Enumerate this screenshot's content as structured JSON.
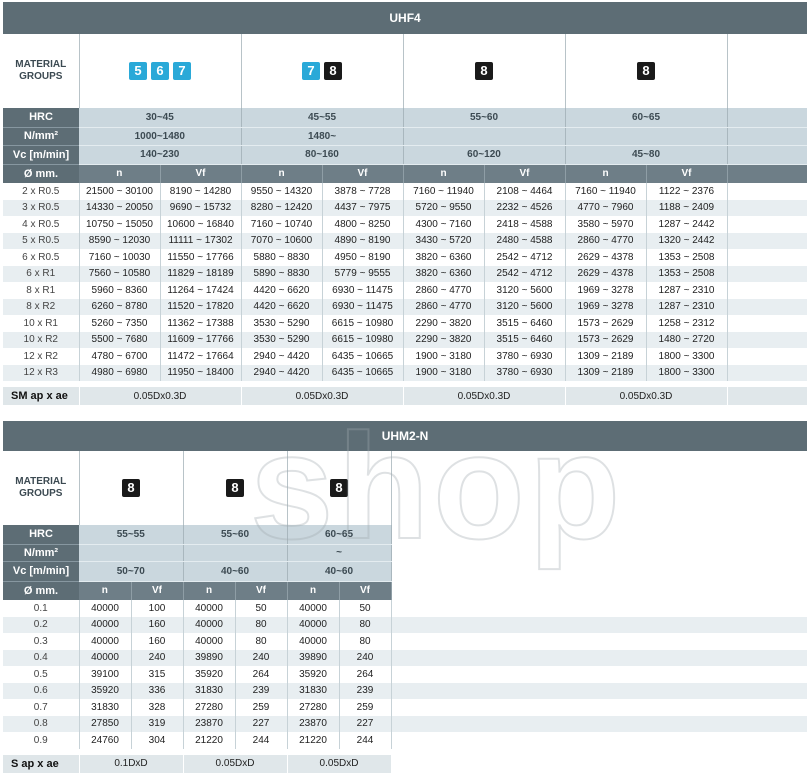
{
  "uhf4": {
    "title": "UHF4",
    "material_label_1": "MATERIAL",
    "material_label_2": "GROUPS",
    "groups": [
      {
        "badges": [
          {
            "n": "5",
            "color": "blue"
          },
          {
            "n": "6",
            "color": "blue"
          },
          {
            "n": "7",
            "color": "blue"
          }
        ]
      },
      {
        "badges": [
          {
            "n": "7",
            "color": "blue"
          },
          {
            "n": "8",
            "color": "black"
          }
        ]
      },
      {
        "badges": [
          {
            "n": "8",
            "color": "black"
          }
        ]
      },
      {
        "badges": [
          {
            "n": "8",
            "color": "black"
          }
        ]
      }
    ],
    "param_labels": {
      "hrc": "HRC",
      "nmm": "N/mm²",
      "vc": "Vc [m/min]",
      "dia": "Ø mm."
    },
    "hrc": [
      "30~45",
      "45~55",
      "55~60",
      "60~65"
    ],
    "nmm": [
      "1000~1480",
      "1480~",
      "",
      ""
    ],
    "vc": [
      "140~230",
      "80~160",
      "60~120",
      "45~80"
    ],
    "col_n": "n",
    "col_vf": "Vf",
    "rows": [
      {
        "d": "2 x R0.5",
        "v": [
          "21500 ~ 30100",
          "8190 ~ 14280",
          "9550 ~ 14320",
          "3878 ~ 7728",
          "7160 ~ 11940",
          "2108 ~ 4464",
          "7160 ~ 11940",
          "1122 ~ 2376"
        ]
      },
      {
        "d": "3 x R0.5",
        "v": [
          "14330 ~ 20050",
          "9690 ~ 15732",
          "8280 ~ 12420",
          "4437 ~ 7975",
          "5720 ~ 9550",
          "2232 ~ 4526",
          "4770 ~ 7960",
          "1188 ~ 2409"
        ]
      },
      {
        "d": "4 x R0.5",
        "v": [
          "10750 ~ 15050",
          "10600 ~ 16840",
          "7160 ~ 10740",
          "4800 ~ 8250",
          "4300 ~ 7160",
          "2418 ~ 4588",
          "3580 ~ 5970",
          "1287 ~ 2442"
        ]
      },
      {
        "d": "5 x R0.5",
        "v": [
          "8590 ~ 12030",
          "11111 ~ 17302",
          "7070 ~ 10600",
          "4890 ~ 8190",
          "3430 ~ 5720",
          "2480 ~ 4588",
          "2860 ~ 4770",
          "1320 ~ 2442"
        ]
      },
      {
        "d": "6 x R0.5",
        "v": [
          "7160 ~ 10030",
          "11550 ~ 17766",
          "5880 ~ 8830",
          "4950 ~ 8190",
          "3820 ~ 6360",
          "2542 ~ 4712",
          "2629 ~ 4378",
          "1353 ~ 2508"
        ]
      },
      {
        "d": "6 x R1",
        "v": [
          "7560 ~ 10580",
          "11829 ~ 18189",
          "5890 ~ 8830",
          "5779 ~ 9555",
          "3820 ~ 6360",
          "2542 ~ 4712",
          "2629 ~ 4378",
          "1353 ~ 2508"
        ]
      },
      {
        "d": "8 x R1",
        "v": [
          "5960 ~ 8360",
          "11264 ~ 17424",
          "4420 ~ 6620",
          "6930 ~ 11475",
          "2860 ~ 4770",
          "3120 ~ 5600",
          "1969 ~ 3278",
          "1287 ~ 2310"
        ]
      },
      {
        "d": "8 x R2",
        "v": [
          "6260 ~ 8780",
          "11520 ~ 17820",
          "4420 ~ 6620",
          "6930 ~ 11475",
          "2860 ~ 4770",
          "3120 ~ 5600",
          "1969 ~ 3278",
          "1287 ~ 2310"
        ]
      },
      {
        "d": "10 x R1",
        "v": [
          "5260 ~ 7350",
          "11362 ~ 17388",
          "3530 ~ 5290",
          "6615 ~ 10980",
          "2290 ~ 3820",
          "3515 ~ 6460",
          "1573 ~ 2629",
          "1258 ~ 2312"
        ]
      },
      {
        "d": "10 x R2",
        "v": [
          "5500 ~ 7680",
          "11609 ~ 17766",
          "3530 ~ 5290",
          "6615 ~ 10980",
          "2290 ~ 3820",
          "3515 ~ 6460",
          "1573 ~ 2629",
          "1480 ~ 2720"
        ]
      },
      {
        "d": "12 x R2",
        "v": [
          "4780 ~ 6700",
          "11472 ~ 17664",
          "2940 ~ 4420",
          "6435 ~ 10665",
          "1900 ~ 3180",
          "3780 ~ 6930",
          "1309 ~ 2189",
          "1800 ~ 3300"
        ]
      },
      {
        "d": "12 x R3",
        "v": [
          "4980 ~ 6980",
          "11950 ~ 18400",
          "2940 ~ 4420",
          "6435 ~ 10665",
          "1900 ~ 3180",
          "3780 ~ 6930",
          "1309 ~ 2189",
          "1800 ~ 3300"
        ]
      }
    ],
    "footer_label": "SM ap x ae",
    "footer": [
      "0.05Dx0.3D",
      "0.05Dx0.3D",
      "0.05Dx0.3D",
      "0.05Dx0.3D"
    ]
  },
  "uhm2n": {
    "title": "UHM2-N",
    "material_label_1": "MATERIAL",
    "material_label_2": "GROUPS",
    "groups": [
      {
        "badges": [
          {
            "n": "8",
            "color": "black"
          }
        ]
      },
      {
        "badges": [
          {
            "n": "8",
            "color": "black"
          }
        ]
      },
      {
        "badges": [
          {
            "n": "8",
            "color": "black"
          }
        ]
      }
    ],
    "param_labels": {
      "hrc": "HRC",
      "nmm": "N/mm²",
      "vc": "Vc [m/min]",
      "dia": "Ø mm."
    },
    "hrc": [
      "55~55",
      "55~60",
      "60~65"
    ],
    "nmm": [
      "",
      "",
      "~"
    ],
    "vc": [
      "50~70",
      "40~60",
      "40~60"
    ],
    "col_n": "n",
    "col_vf": "Vf",
    "rows": [
      {
        "d": "0.1",
        "v": [
          "40000",
          "100",
          "40000",
          "50",
          "40000",
          "50"
        ]
      },
      {
        "d": "0.2",
        "v": [
          "40000",
          "160",
          "40000",
          "80",
          "40000",
          "80"
        ]
      },
      {
        "d": "0.3",
        "v": [
          "40000",
          "160",
          "40000",
          "80",
          "40000",
          "80"
        ]
      },
      {
        "d": "0.4",
        "v": [
          "40000",
          "240",
          "39890",
          "240",
          "39890",
          "240"
        ]
      },
      {
        "d": "0.5",
        "v": [
          "39100",
          "315",
          "35920",
          "264",
          "35920",
          "264"
        ]
      },
      {
        "d": "0.6",
        "v": [
          "35920",
          "336",
          "31830",
          "239",
          "31830",
          "239"
        ]
      },
      {
        "d": "0.7",
        "v": [
          "31830",
          "328",
          "27280",
          "259",
          "27280",
          "259"
        ]
      },
      {
        "d": "0.8",
        "v": [
          "27850",
          "319",
          "23870",
          "227",
          "23870",
          "227"
        ]
      },
      {
        "d": "0.9",
        "v": [
          "24760",
          "304",
          "21220",
          "244",
          "21220",
          "244"
        ]
      }
    ],
    "footer_label": "S ap x ae",
    "footer": [
      "0.1DxD",
      "0.05DxD",
      "0.05DxD"
    ]
  },
  "watermark": "shop"
}
